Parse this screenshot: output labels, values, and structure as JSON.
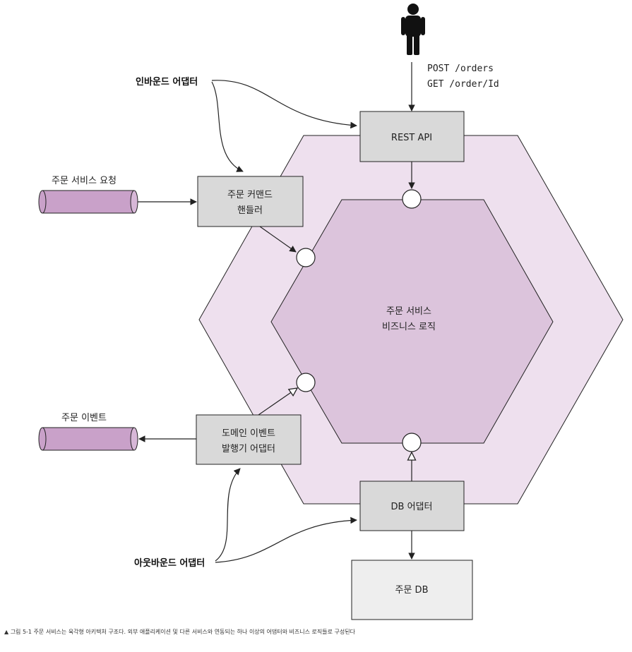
{
  "diagram": {
    "http_endpoints": [
      "POST /orders",
      "GET /order/Id"
    ],
    "inbound_adapter_label": "인바운드 어댑터",
    "outbound_adapter_label": "아웃바운드 어댑터",
    "rest_api": "REST API",
    "command_handler": [
      "주문 커맨드",
      "핸들러"
    ],
    "event_publisher": [
      "도메인 이벤트",
      "발행기 어댑터"
    ],
    "db_adapter": "DB 어댑터",
    "database": "주문 DB",
    "business_logic": [
      "주문 서비스",
      "비즈니스 로직"
    ],
    "service_request_channel": "주문 서비스 요청",
    "event_channel": "주문 이벤트",
    "colors": {
      "outer_hexagon": "#eee0ee",
      "inner_hexagon": "#dcc4dc",
      "adapter_box": "#d9d9d9",
      "database_box": "#eeeeee",
      "channel": "#c9a1c9"
    }
  },
  "caption": "▲ 그림 5-1 주문 서비스는 육각형 아키텍처 구조다. 외부 애플리케이션 및 다른 서비스와 연동되는 하나 이상의 어댑터와 비즈니스 로직들로 구성된다"
}
